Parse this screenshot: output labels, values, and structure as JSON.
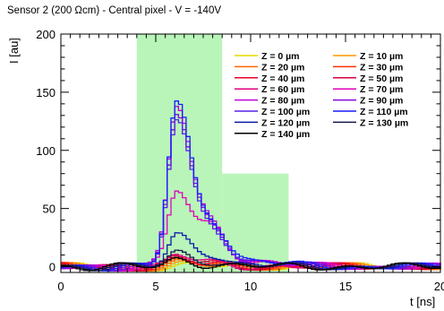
{
  "chart_data": {
    "type": "line",
    "title": "Sensor 2 (200 Ωcm) - Central pixel -  V = -140V",
    "xlabel": "t [ns]",
    "ylabel": "I [au]",
    "xlim": [
      0,
      20
    ],
    "ylim": [
      -5,
      200
    ],
    "x_ticks": [
      "0",
      "5",
      "10",
      "15",
      "20"
    ],
    "y_ticks": [
      "0",
      "50",
      "100",
      "150",
      "200"
    ],
    "grid": false,
    "legend_position": "top-right",
    "highlight_regions": [
      {
        "x": [
          4,
          8.5
        ],
        "y": [
          -5,
          200
        ],
        "color": "#b9f5b9"
      },
      {
        "x": [
          8.5,
          12
        ],
        "y": [
          -5,
          80
        ],
        "color": "#b9f5b9"
      }
    ],
    "series": [
      {
        "name": "Z = 0  µm",
        "color": "#e8d800",
        "peak": 2,
        "secondary": 0.5
      },
      {
        "name": "Z = 10  µm",
        "color": "#ff9900",
        "peak": 3,
        "secondary": 0.8
      },
      {
        "name": "Z = 20  µm",
        "color": "#ff6600",
        "peak": 4,
        "secondary": 1
      },
      {
        "name": "Z = 30  µm",
        "color": "#ff3300",
        "peak": 5,
        "secondary": 1.5
      },
      {
        "name": "Z = 40  µm",
        "color": "#e8002a",
        "peak": 6,
        "secondary": 2
      },
      {
        "name": "Z = 50  µm",
        "color": "#d4003c",
        "peak": 8,
        "secondary": 3
      },
      {
        "name": "Z = 60  µm",
        "color": "#e0007a",
        "peak": 10,
        "secondary": 4
      },
      {
        "name": "Z = 70  µm",
        "color": "#e000b8",
        "peak": 64,
        "secondary": 40
      },
      {
        "name": "Z = 80  µm",
        "color": "#c000d8",
        "peak": 137,
        "secondary": 42
      },
      {
        "name": "Z = 90  µm",
        "color": "#8800e0",
        "peak": 130,
        "secondary": 40
      },
      {
        "name": "Z = 100  µm",
        "color": "#5a20e8",
        "peak": 125,
        "secondary": 38
      },
      {
        "name": "Z = 110  µm",
        "color": "#1a1aff",
        "peak": 140,
        "secondary": 44
      },
      {
        "name": "Z = 120  µm",
        "color": "#0a1aa8",
        "peak": 27,
        "secondary": 12
      },
      {
        "name": "Z = 130  µm",
        "color": "#141a4a",
        "peak": 12,
        "secondary": 5
      },
      {
        "name": "Z = 140  µm",
        "color": "#000000",
        "peak": 6,
        "secondary": 2
      }
    ]
  }
}
